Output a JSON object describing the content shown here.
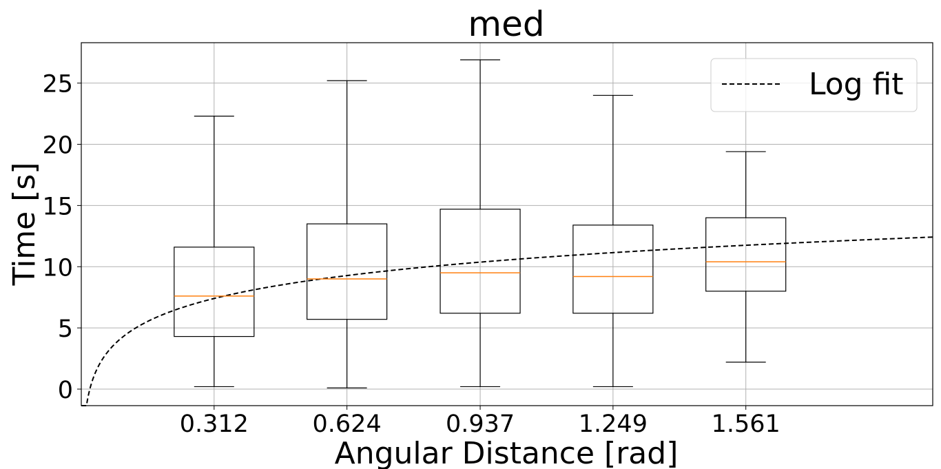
{
  "chart_data": {
    "type": "box",
    "title": "med",
    "xlabel": "Angular Distance [rad]",
    "ylabel": "Time [s]",
    "categories": [
      "0.312",
      "0.624",
      "0.937",
      "1.249",
      "1.561"
    ],
    "positions": [
      0.312,
      0.624,
      0.937,
      1.249,
      1.561
    ],
    "boxes": [
      {
        "whisker_low": 0.2,
        "q1": 4.3,
        "median": 7.6,
        "q3": 11.6,
        "whisker_high": 22.3
      },
      {
        "whisker_low": 0.1,
        "q1": 5.7,
        "median": 9.0,
        "q3": 13.5,
        "whisker_high": 25.2
      },
      {
        "whisker_low": 0.2,
        "q1": 6.2,
        "median": 9.5,
        "q3": 14.7,
        "whisker_high": 26.9
      },
      {
        "whisker_low": 0.2,
        "q1": 6.2,
        "median": 9.2,
        "q3": 13.4,
        "whisker_high": 24.0
      },
      {
        "whisker_low": 2.2,
        "q1": 8.0,
        "median": 10.4,
        "q3": 14.0,
        "whisker_high": 19.4
      }
    ],
    "fit": {
      "name": "Log fit",
      "model": "a + b*ln(x)",
      "a": 10.55,
      "b": 2.7
    },
    "xlim": [
      0.0,
      2.0
    ],
    "ylim": [
      -1.35,
      28.3
    ],
    "yticks": [
      0,
      5,
      10,
      15,
      20,
      25
    ],
    "grid": true,
    "legend_position": "top-right",
    "colors": {
      "box": "#000000",
      "median": "#ff7f0e",
      "fit": "#000000",
      "grid": "#b0b0b0"
    }
  }
}
